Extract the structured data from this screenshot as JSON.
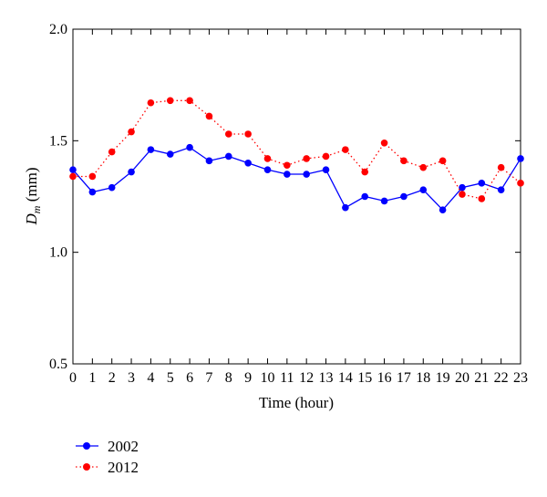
{
  "chart_data": {
    "type": "line",
    "xlabel": "Time (hour)",
    "ylabel_main": "D",
    "ylabel_sub": "m",
    "ylabel_unit": " (mm)",
    "xlim": [
      0,
      23
    ],
    "ylim": [
      0.5,
      2.0
    ],
    "x": [
      0,
      1,
      2,
      3,
      4,
      5,
      6,
      7,
      8,
      9,
      10,
      11,
      12,
      13,
      14,
      15,
      16,
      17,
      18,
      19,
      20,
      21,
      22,
      23
    ],
    "xticks": [
      "0",
      "1",
      "2",
      "3",
      "4",
      "5",
      "6",
      "7",
      "8",
      "9",
      "10",
      "11",
      "12",
      "13",
      "14",
      "15",
      "16",
      "17",
      "18",
      "19",
      "20",
      "21",
      "22",
      "23"
    ],
    "yticks": [
      {
        "value": 0.5,
        "label": "0.5"
      },
      {
        "value": 1.0,
        "label": "1.0"
      },
      {
        "value": 1.5,
        "label": "1.5"
      },
      {
        "value": 2.0,
        "label": "2.0"
      }
    ],
    "grid": false,
    "legend_position": "bottom-left",
    "series": [
      {
        "name": "2002",
        "color": "#0000ff",
        "line_style": "solid",
        "values": [
          1.37,
          1.27,
          1.29,
          1.36,
          1.46,
          1.44,
          1.47,
          1.41,
          1.43,
          1.4,
          1.37,
          1.35,
          1.35,
          1.37,
          1.2,
          1.25,
          1.23,
          1.25,
          1.28,
          1.19,
          1.29,
          1.31,
          1.28,
          1.42
        ]
      },
      {
        "name": "2012",
        "color": "#ff0000",
        "line_style": "dotted",
        "values": [
          1.34,
          1.34,
          1.45,
          1.54,
          1.67,
          1.68,
          1.68,
          1.61,
          1.53,
          1.53,
          1.42,
          1.39,
          1.42,
          1.43,
          1.46,
          1.36,
          1.49,
          1.41,
          1.38,
          1.41,
          1.26,
          1.24,
          1.38,
          1.31
        ]
      }
    ]
  }
}
